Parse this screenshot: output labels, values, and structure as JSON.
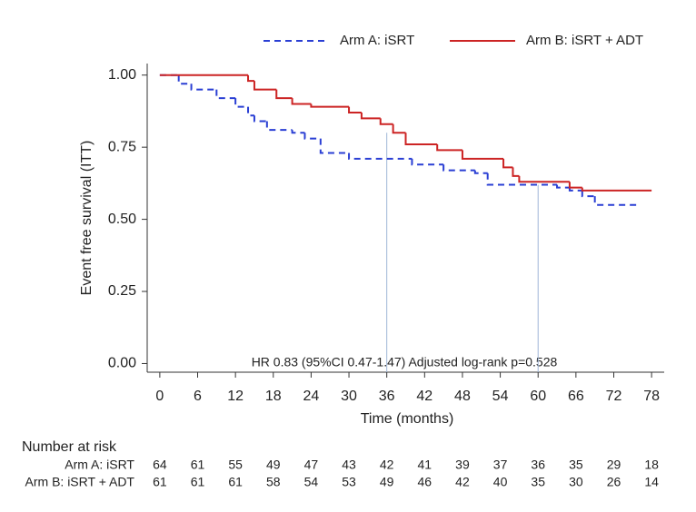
{
  "chart_data": {
    "type": "line",
    "drawstyle": "steps-post",
    "xlabel": "Time (months)",
    "ylabel": "Event free survival (ITT)",
    "annotation": "HR 0.83 (95%CI 0.47-1.47) Adjusted log-rank p=0.528",
    "xlim": [
      -2,
      80
    ],
    "ylim": [
      -0.03,
      1.04
    ],
    "xticks": [
      0,
      6,
      12,
      18,
      24,
      30,
      36,
      42,
      48,
      54,
      60,
      66,
      72,
      78
    ],
    "yticks": [
      {
        "value": 0,
        "label": "0.00"
      },
      {
        "value": 0.25,
        "label": "0.25"
      },
      {
        "value": 0.5,
        "label": "0.50"
      },
      {
        "value": 0.75,
        "label": "0.75"
      },
      {
        "value": 1,
        "label": "1.00"
      }
    ],
    "series": [
      {
        "name": "Arm A: iSRT",
        "color": "#2a3fd4",
        "dashed": true,
        "x": [
          0,
          3,
          5,
          9,
          12,
          14,
          15,
          17,
          21,
          23,
          25.5,
          30,
          40,
          45,
          50,
          52,
          63,
          65,
          67,
          69,
          76
        ],
        "values": [
          1.0,
          0.97,
          0.95,
          0.92,
          0.89,
          0.86,
          0.84,
          0.81,
          0.8,
          0.78,
          0.73,
          0.71,
          0.69,
          0.67,
          0.66,
          0.62,
          0.61,
          0.6,
          0.58,
          0.55,
          0.55
        ]
      },
      {
        "name": "Arm B: iSRT + ADT",
        "color": "#cc2424",
        "dashed": false,
        "x": [
          0,
          14,
          15,
          18.5,
          21,
          24,
          30,
          32,
          35,
          37,
          39,
          44,
          48,
          54.5,
          56,
          57,
          65,
          67,
          78
        ],
        "values": [
          1.0,
          0.98,
          0.95,
          0.92,
          0.9,
          0.89,
          0.87,
          0.85,
          0.83,
          0.8,
          0.76,
          0.74,
          0.71,
          0.68,
          0.65,
          0.63,
          0.61,
          0.6,
          0.6
        ]
      }
    ],
    "vlines": [
      {
        "x": 36,
        "y": 0.8
      },
      {
        "x": 60,
        "y": 0.62
      }
    ],
    "risk_table": {
      "title": "Number at risk",
      "rows": [
        {
          "label": "Arm A: iSRT",
          "values": [
            64,
            61,
            55,
            49,
            47,
            43,
            42,
            41,
            39,
            37,
            36,
            35,
            29,
            18
          ]
        },
        {
          "label": "Arm B: iSRT + ADT",
          "values": [
            61,
            61,
            61,
            58,
            54,
            53,
            49,
            46,
            42,
            40,
            35,
            30,
            26,
            14
          ]
        }
      ]
    }
  }
}
